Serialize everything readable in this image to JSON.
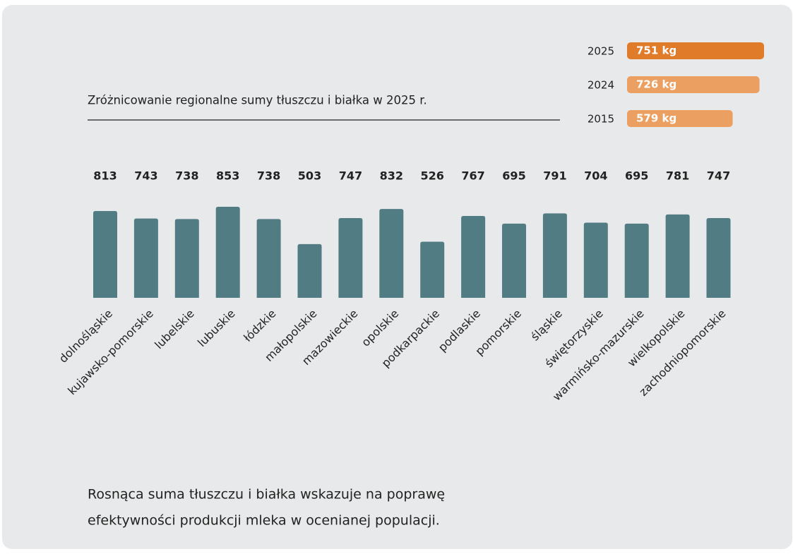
{
  "chart_data": [
    {
      "type": "hbar",
      "categories": [
        "2025",
        "2024",
        "2015"
      ],
      "values": [
        751,
        726,
        579
      ],
      "value_labels": [
        "751 kg",
        "726 kg",
        "579 kg"
      ],
      "colors": [
        "#e07b2a",
        "#eba062",
        "#eba062"
      ]
    },
    {
      "type": "bar",
      "title": "Zróżnicowanie regionalne sumy tłuszczu i białka w 2025 r.",
      "categories": [
        "dolnośląskie",
        "kujawsko-pomorskie",
        "lubelskie",
        "lubuskie",
        "łódzkie",
        "małopolskie",
        "mazowieckie",
        "opolskie",
        "podkarpackie",
        "podlaskie",
        "pomorskie",
        "śląskie",
        "świętorzyskie",
        "warmińsko-mazurskie",
        "wielkopolskie",
        "zachodniopomorskie"
      ],
      "values": [
        813,
        743,
        738,
        853,
        738,
        503,
        747,
        832,
        526,
        767,
        695,
        791,
        704,
        695,
        781,
        747
      ],
      "color": "#527c84"
    }
  ],
  "note": [
    "Rosnąca suma tłuszczu i białka wskazuje na poprawę",
    "efektywności produkcji mleka w ocenianej populacji."
  ]
}
